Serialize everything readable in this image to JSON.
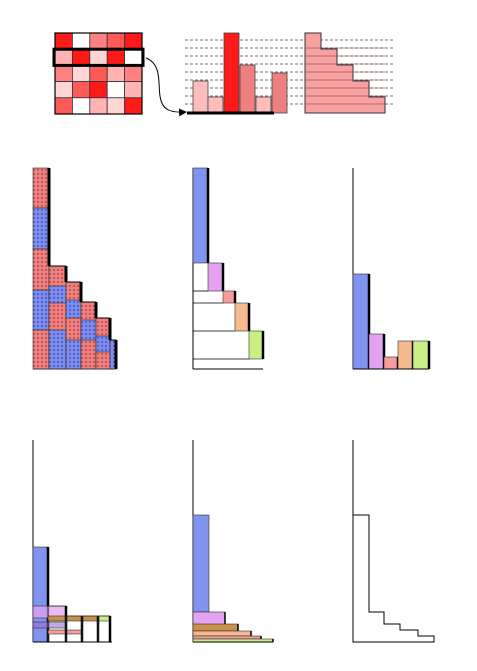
{
  "colors": {
    "background": "#ffffff",
    "stroke": "#000000",
    "grid_line": "#444444",
    "matrix": [
      "#ffffff",
      "#ffd6d6",
      "#ffb3b3",
      "#ff8080",
      "#ff5a5a",
      "#ff1a1a"
    ],
    "bar_strong": "#ff1a1a",
    "bar_medium": "#f08080",
    "bar_light": "#ffbcbc",
    "staircase": "#f7a1a1",
    "dotted_red": "#f08080",
    "dotted_blue": "#7d8cf0",
    "blue": "#8093f1",
    "violet": "#e3a3f0",
    "salmon": "#f79c9c",
    "orange": "#f5b98e",
    "lime": "#c9ee84",
    "dark_orange": "#c98f4a",
    "purple": "#9a6fd6"
  },
  "matrix": {
    "values": [
      [
        5,
        0,
        3,
        4,
        5
      ],
      [
        2,
        5,
        1,
        5,
        0
      ],
      [
        3,
        1,
        4,
        2,
        3
      ],
      [
        1,
        4,
        5,
        0,
        2
      ],
      [
        4,
        0,
        2,
        1,
        5
      ]
    ],
    "highlighted_row": 1
  },
  "row_histogram": {
    "values": [
      2.0,
      1.0,
      5.0,
      3.0,
      1.0,
      2.5
    ]
  },
  "sorted_histogram": {
    "values": [
      5.0,
      4.0,
      3.0,
      2.0,
      1.0
    ]
  },
  "stacked_panel": {
    "bands": [
      {
        "tone": "red",
        "value": 6.0
      },
      {
        "tone": "blue",
        "value": 4.0
      },
      {
        "tone": "red",
        "value": 3.0
      },
      {
        "tone": "blue",
        "value": 2.5
      }
    ]
  },
  "steps_panel": {
    "steps": [
      {
        "tone": "blue",
        "value": 95
      },
      {
        "tone": "violet",
        "value": 28
      },
      {
        "tone": "salmon",
        "value": 12
      },
      {
        "tone": "orange",
        "value": 28
      },
      {
        "tone": "lime",
        "value": 28
      }
    ]
  },
  "bars_panel": {
    "bars": [
      {
        "tone": "blue",
        "value": 95
      },
      {
        "tone": "violet",
        "value": 35
      },
      {
        "tone": "salmon",
        "value": 12
      },
      {
        "tone": "orange",
        "value": 28
      },
      {
        "tone": "lime",
        "value": 28
      }
    ]
  },
  "overlay_panel": {
    "blue_height": 95,
    "ribbons": [
      {
        "tone": "violet",
        "value": 12
      },
      {
        "tone": "orange",
        "value": 8
      },
      {
        "tone": "lime",
        "value": 6
      }
    ]
  },
  "horizontal_panel": {
    "bars": [
      {
        "tone": "blue",
        "value": 95
      },
      {
        "tone": "violet",
        "value": 18
      },
      {
        "tone": "orange",
        "value": 8
      },
      {
        "tone": "salmon",
        "value": 6
      },
      {
        "tone": "lime",
        "value": 3
      }
    ]
  },
  "outline_panel": {
    "steps": [
      100,
      20,
      14,
      8,
      4
    ]
  }
}
